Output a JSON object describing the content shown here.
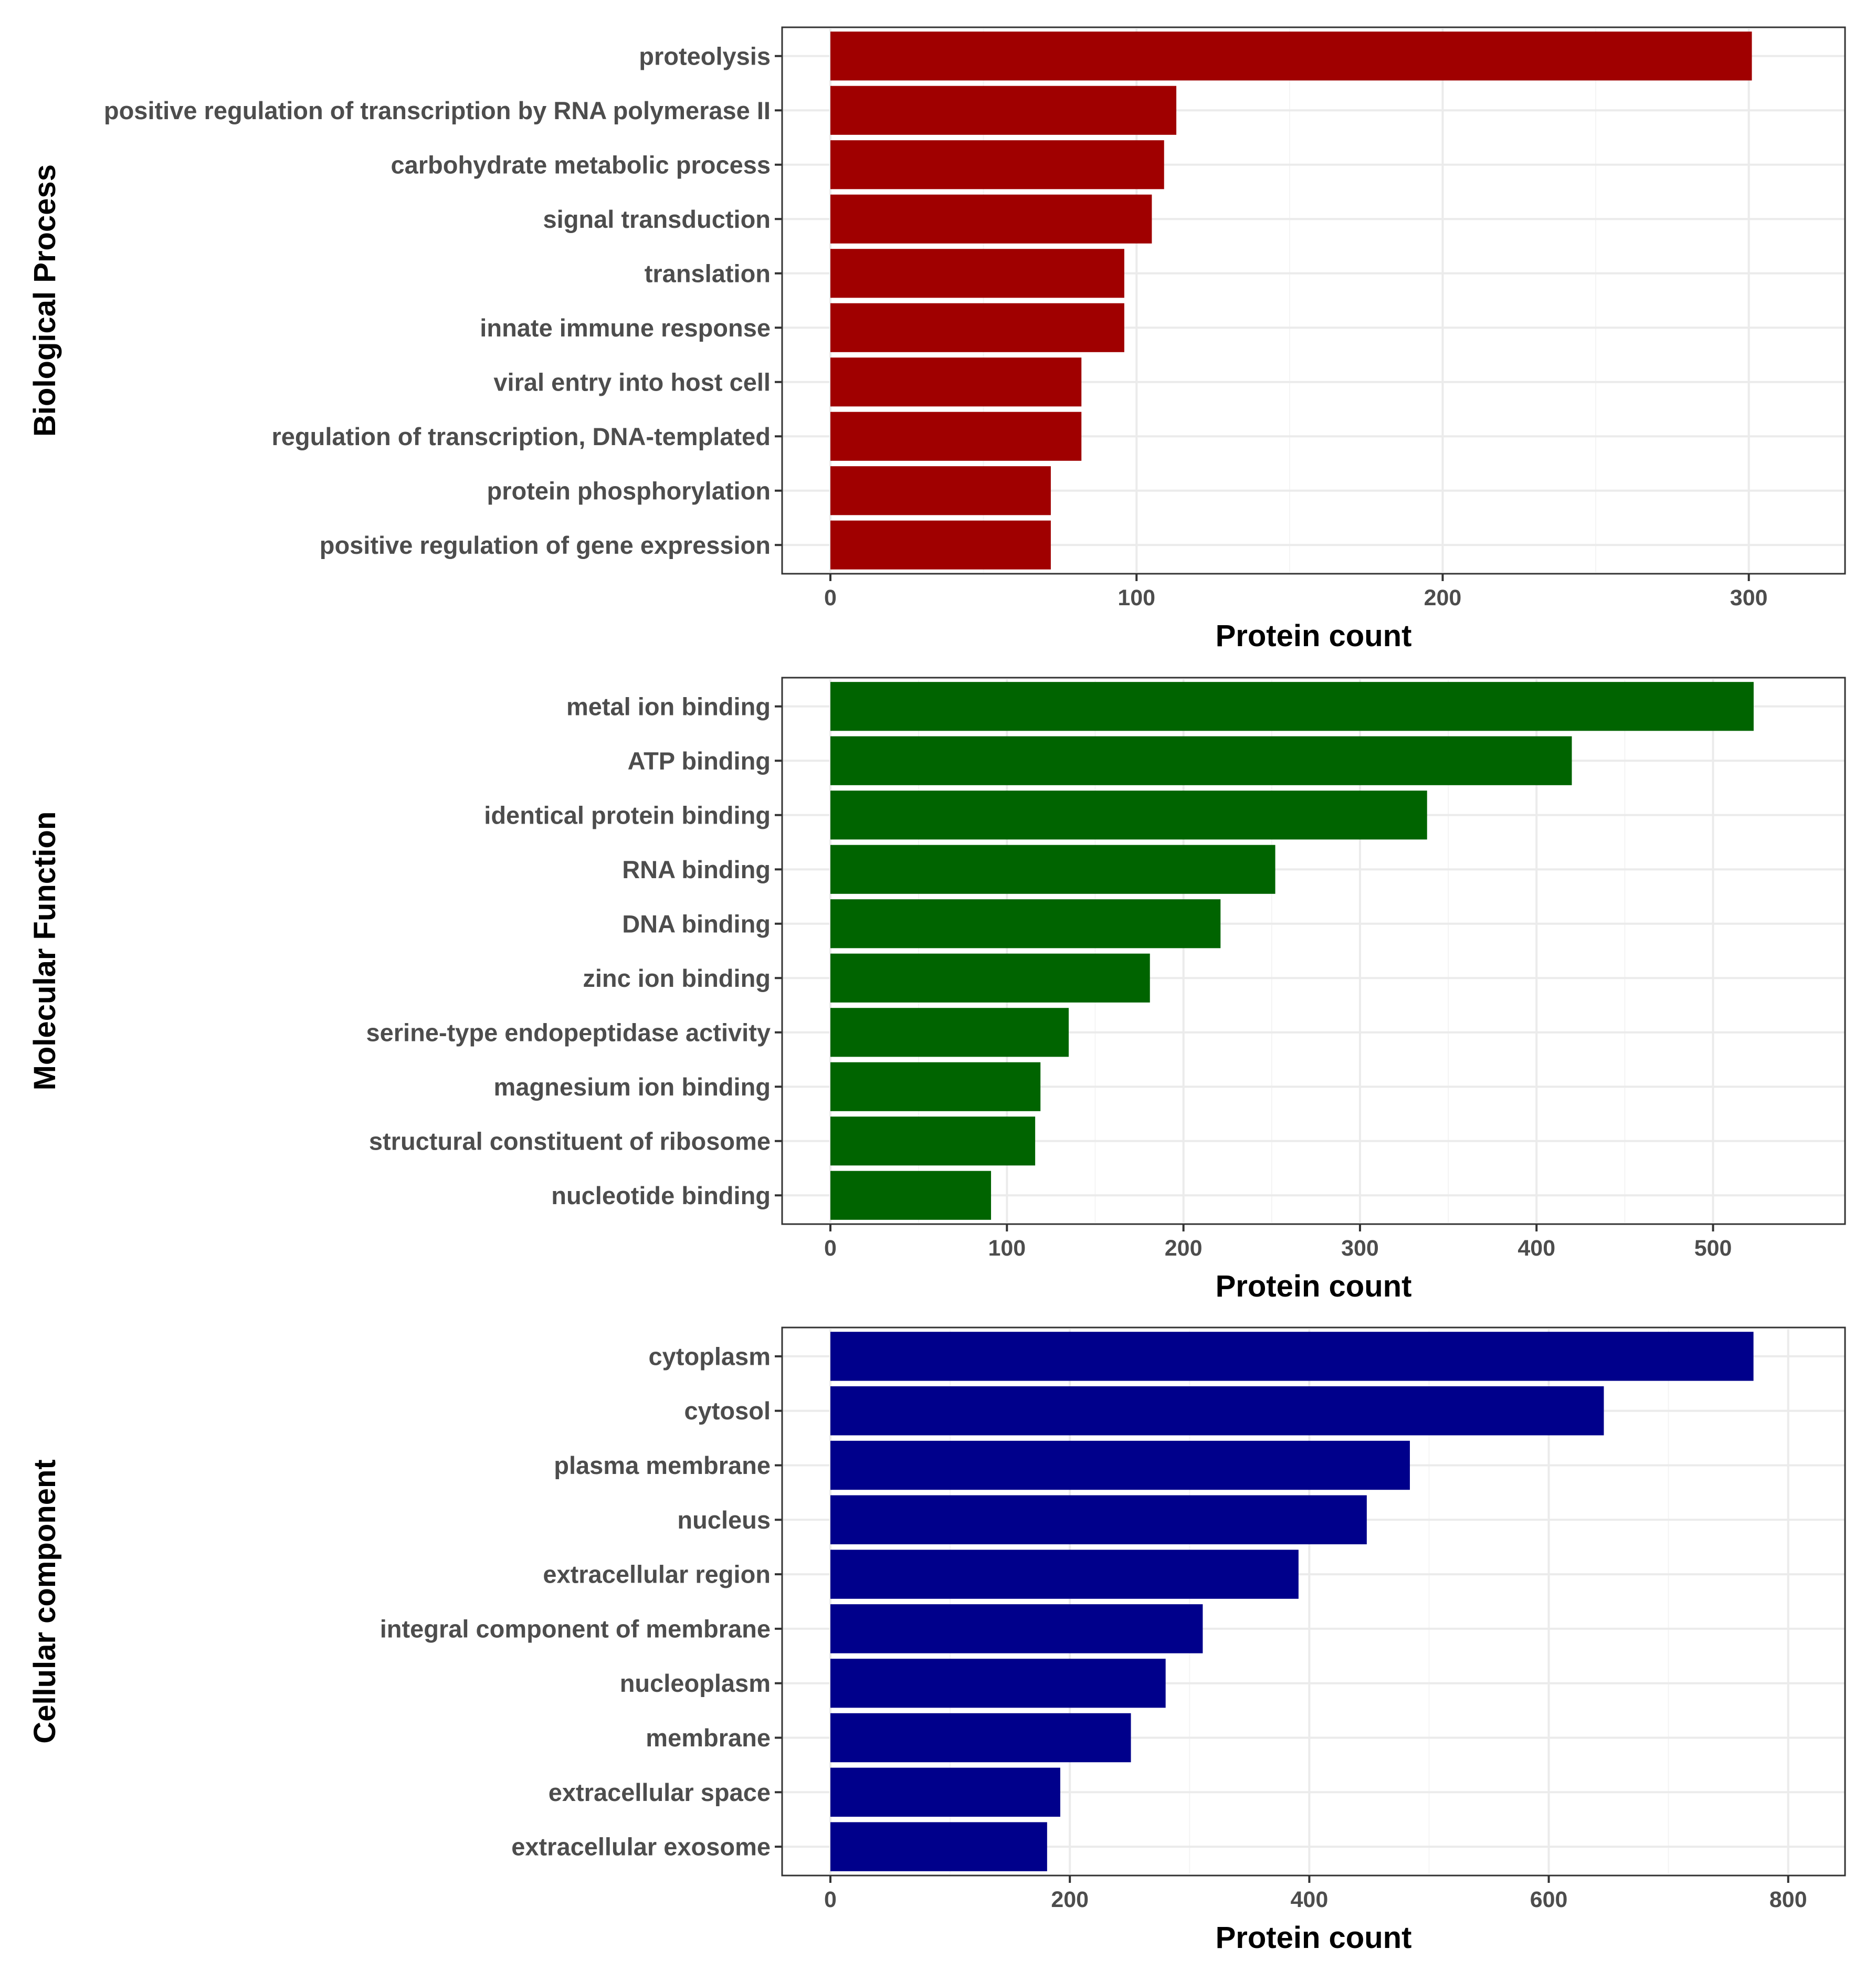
{
  "chart_data": [
    {
      "type": "bar",
      "orientation": "horizontal",
      "title": "Biological Process",
      "xlabel": "Protein count",
      "xlim": [
        0,
        316
      ],
      "xticks": [
        0,
        100,
        200,
        300
      ],
      "color": "#a00000",
      "categories": [
        "proteolysis",
        "positive regulation of transcription by RNA polymerase II",
        "carbohydrate metabolic process",
        "signal transduction",
        "translation",
        "innate immune response",
        "viral entry into host cell",
        "regulation of transcription, DNA-templated",
        "protein phosphorylation",
        "positive regulation of gene expression"
      ],
      "values": [
        301,
        113,
        109,
        105,
        96,
        96,
        82,
        82,
        72,
        72
      ]
    },
    {
      "type": "bar",
      "orientation": "horizontal",
      "title": "Molecular Function",
      "xlabel": "Protein count",
      "xlim": [
        0,
        548
      ],
      "xticks": [
        0,
        100,
        200,
        300,
        400,
        500
      ],
      "color": "#006400",
      "categories": [
        "metal ion binding",
        "ATP binding",
        "identical protein binding",
        "RNA binding",
        "DNA binding",
        "zinc ion binding",
        "serine-type endopeptidase activity",
        "magnesium ion binding",
        "structural constituent of ribosome",
        "nucleotide binding"
      ],
      "values": [
        523,
        420,
        338,
        252,
        221,
        181,
        135,
        119,
        116,
        91
      ]
    },
    {
      "type": "bar",
      "orientation": "horizontal",
      "title": "Cellular component",
      "xlabel": "Protein count",
      "xlim": [
        0,
        808
      ],
      "xticks": [
        0,
        200,
        400,
        600,
        800
      ],
      "color": "#00008b",
      "categories": [
        "cytoplasm",
        "cytosol",
        "plasma membrane",
        "nucleus",
        "extracellular region",
        "integral component of membrane",
        "nucleoplasm",
        "membrane",
        "extracellular space",
        "extracellular exosome"
      ],
      "values": [
        771,
        646,
        484,
        448,
        391,
        311,
        280,
        251,
        192,
        181
      ]
    }
  ]
}
